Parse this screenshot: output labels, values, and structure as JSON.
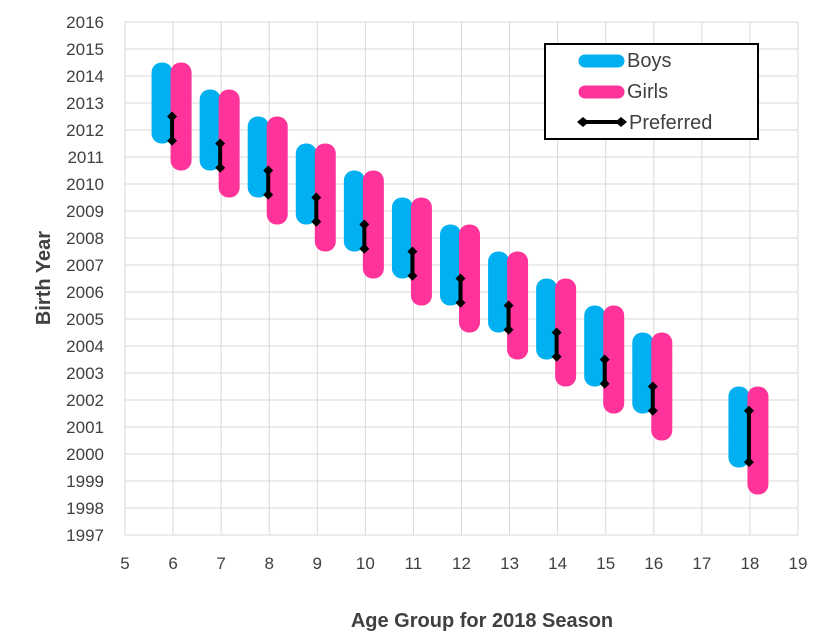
{
  "chart_data": {
    "type": "range-bar",
    "xlabel": "Age Group for 2018 Season",
    "ylabel": "Birth Year",
    "xlim": [
      5,
      19
    ],
    "ylim": [
      1997,
      2016
    ],
    "x_ticks": [
      "5",
      "6",
      "7",
      "8",
      "9",
      "10",
      "11",
      "12",
      "13",
      "14",
      "15",
      "16",
      "17",
      "18",
      "19"
    ],
    "y_ticks": [
      "1997",
      "1998",
      "1999",
      "2000",
      "2001",
      "2002",
      "2003",
      "2004",
      "2005",
      "2006",
      "2007",
      "2008",
      "2009",
      "2010",
      "2011",
      "2012",
      "2013",
      "2014",
      "2015",
      "2016"
    ],
    "grid": true,
    "legend_position": "top-right",
    "series": [
      {
        "name": "Boys",
        "color": "#00B0F0",
        "data": [
          {
            "age": 6,
            "from": 2011.5,
            "to": 2014.5
          },
          {
            "age": 7,
            "from": 2010.5,
            "to": 2013.5
          },
          {
            "age": 8,
            "from": 2009.5,
            "to": 2012.5
          },
          {
            "age": 9,
            "from": 2008.5,
            "to": 2011.5
          },
          {
            "age": 10,
            "from": 2007.5,
            "to": 2010.5
          },
          {
            "age": 11,
            "from": 2006.5,
            "to": 2009.5
          },
          {
            "age": 12,
            "from": 2005.5,
            "to": 2008.5
          },
          {
            "age": 13,
            "from": 2004.5,
            "to": 2007.5
          },
          {
            "age": 14,
            "from": 2003.5,
            "to": 2006.5
          },
          {
            "age": 15,
            "from": 2002.5,
            "to": 2005.5
          },
          {
            "age": 16,
            "from": 2001.5,
            "to": 2004.5
          },
          {
            "age": 18,
            "from": 1999.5,
            "to": 2002.5
          }
        ]
      },
      {
        "name": "Girls",
        "color": "#FF3399",
        "data": [
          {
            "age": 6,
            "from": 2010.5,
            "to": 2014.5
          },
          {
            "age": 7,
            "from": 2009.5,
            "to": 2013.5
          },
          {
            "age": 8,
            "from": 2008.5,
            "to": 2012.5
          },
          {
            "age": 9,
            "from": 2007.5,
            "to": 2011.5
          },
          {
            "age": 10,
            "from": 2006.5,
            "to": 2010.5
          },
          {
            "age": 11,
            "from": 2005.5,
            "to": 2009.5
          },
          {
            "age": 12,
            "from": 2004.5,
            "to": 2008.5
          },
          {
            "age": 13,
            "from": 2003.5,
            "to": 2007.5
          },
          {
            "age": 14,
            "from": 2002.5,
            "to": 2006.5
          },
          {
            "age": 15,
            "from": 2001.5,
            "to": 2005.5
          },
          {
            "age": 16,
            "from": 2000.5,
            "to": 2004.5
          },
          {
            "age": 18,
            "from": 1998.5,
            "to": 2002.5
          }
        ]
      },
      {
        "name": "Preferred",
        "color": "#000000",
        "data": [
          {
            "age": 6,
            "from": 2011.6,
            "to": 2012.5
          },
          {
            "age": 7,
            "from": 2010.6,
            "to": 2011.5
          },
          {
            "age": 8,
            "from": 2009.6,
            "to": 2010.5
          },
          {
            "age": 9,
            "from": 2008.6,
            "to": 2009.5
          },
          {
            "age": 10,
            "from": 2007.6,
            "to": 2008.5
          },
          {
            "age": 11,
            "from": 2006.6,
            "to": 2007.5
          },
          {
            "age": 12,
            "from": 2005.6,
            "to": 2006.5
          },
          {
            "age": 13,
            "from": 2004.6,
            "to": 2005.5
          },
          {
            "age": 14,
            "from": 2003.6,
            "to": 2004.5
          },
          {
            "age": 15,
            "from": 2002.6,
            "to": 2003.5
          },
          {
            "age": 16,
            "from": 2001.6,
            "to": 2002.5
          },
          {
            "age": 18,
            "from": 1999.7,
            "to": 2001.6
          }
        ]
      }
    ]
  }
}
